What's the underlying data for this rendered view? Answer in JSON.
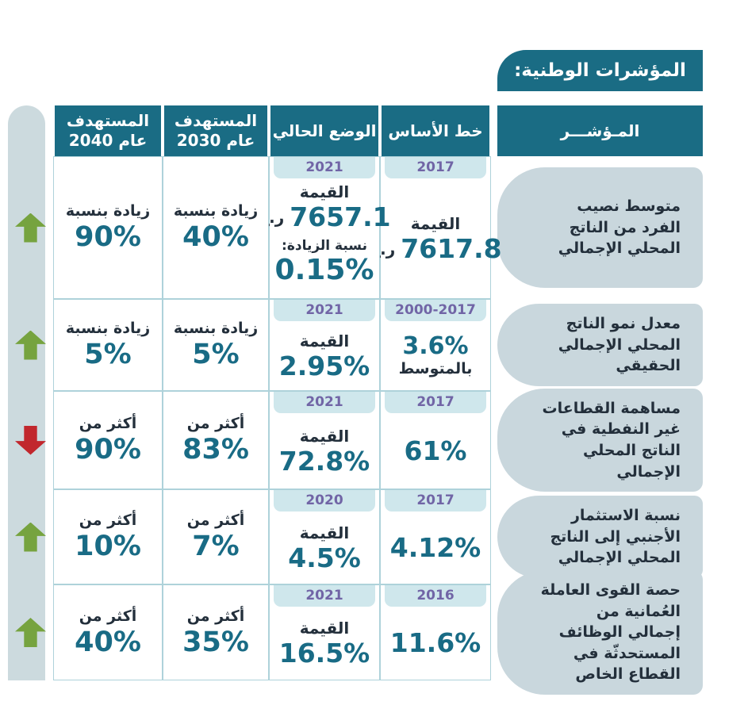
{
  "title": "المؤشرات الوطنية:",
  "headers": {
    "indicator": "المـؤشـــر",
    "baseline": "خط الأساس",
    "current": "الوضع الحالي",
    "t2030": {
      "l1": "المستهدف",
      "l2": "عام 2030"
    },
    "t2040": {
      "l1": "المستهدف",
      "l2": "عام 2040"
    }
  },
  "rows": [
    {
      "indicator": "متوسط نصيب الفرد من الناتج المحلي الإجمالي",
      "baseline": {
        "year": "2017",
        "label": "القيمة",
        "value": "7617.8",
        "unit": "ر.ع"
      },
      "current": {
        "year": "2021",
        "label": "القيمة",
        "value": "7657.1",
        "unit": "ر.ع",
        "extra_label": "نسبة الزيادة:",
        "extra_value": "0.15%"
      },
      "t2030": {
        "label": "زيادة بنسبة",
        "value": "40%"
      },
      "t2040": {
        "label": "زيادة بنسبة",
        "value": "90%"
      },
      "trend": "up"
    },
    {
      "indicator": "معدل نمو الناتج المحلي الإجمالي الحقيقي",
      "baseline": {
        "year": "2000-2017",
        "value": "3.6%",
        "sublabel": "بالمتوسط"
      },
      "current": {
        "year": "2021",
        "label": "القيمة",
        "value": "2.95%"
      },
      "t2030": {
        "label": "زيادة بنسبة",
        "value": "5%"
      },
      "t2040": {
        "label": "زيادة بنسبة",
        "value": "5%"
      },
      "trend": "up"
    },
    {
      "indicator": "مساهمة القطاعات غير النفطية في الناتج المحلي الإجمالي",
      "baseline": {
        "year": "2017",
        "value": "61%"
      },
      "current": {
        "year": "2021",
        "label": "القيمة",
        "value": "72.8%"
      },
      "t2030": {
        "label": "أكثر من",
        "value": "83%"
      },
      "t2040": {
        "label": "أكثر من",
        "value": "90%"
      },
      "trend": "down"
    },
    {
      "indicator": "نسبة الاستثمار الأجنبي إلى الناتج المحلي الإجمالي",
      "baseline": {
        "year": "2017",
        "value": "4.12%"
      },
      "current": {
        "year": "2020",
        "label": "القيمة",
        "value": "4.5%"
      },
      "t2030": {
        "label": "أكثر من",
        "value": "7%"
      },
      "t2040": {
        "label": "أكثر من",
        "value": "10%"
      },
      "trend": "up"
    },
    {
      "indicator": "حصة القوى العاملة العُمانية من إجمالي الوظائف المستحدثّة في القطاع الخاص",
      "baseline": {
        "year": "2016",
        "value": "11.6%"
      },
      "current": {
        "year": "2021",
        "label": "القيمة",
        "value": "16.5%"
      },
      "t2030": {
        "label": "أكثر من",
        "value": "35%"
      },
      "t2040": {
        "label": "أكثر من",
        "value": "40%"
      },
      "trend": "up"
    }
  ],
  "colors": {
    "header_teal": "#1a6c84",
    "value_teal": "#196b85",
    "year_badge_bg": "#cfe7ec",
    "year_badge_text": "#7165a6",
    "indicator_pill_bg": "#c9d7dd",
    "trend_band_bg": "#ccdade",
    "trend_up_green": "#76a33f",
    "trend_down_red": "#c1272d",
    "grid_line": "#aed2da",
    "text_dark": "#232f3b"
  }
}
